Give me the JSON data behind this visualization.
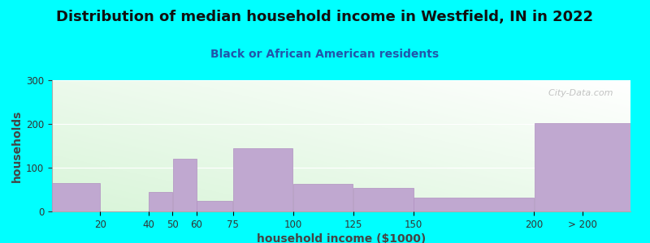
{
  "title": "Distribution of median household income in Westfield, IN in 2022",
  "subtitle": "Black or African American residents",
  "xlabel": "household income ($1000)",
  "ylabel": "households",
  "background_color": "#00FFFF",
  "bar_color": "#C0A8D0",
  "bar_edge_color": "#B090C0",
  "ylim": [
    0,
    300
  ],
  "yticks": [
    0,
    100,
    200,
    300
  ],
  "title_fontsize": 13,
  "subtitle_fontsize": 10,
  "label_fontsize": 10,
  "watermark_text": "City-Data.com",
  "bar_data": [
    [
      0,
      20,
      65
    ],
    [
      20,
      40,
      0
    ],
    [
      40,
      50,
      45
    ],
    [
      50,
      60,
      120
    ],
    [
      60,
      75,
      25
    ],
    [
      75,
      100,
      145
    ],
    [
      100,
      125,
      63
    ],
    [
      125,
      150,
      53
    ],
    [
      150,
      200,
      32
    ],
    [
      200,
      240,
      202
    ]
  ],
  "xtick_pos": [
    20,
    40,
    50,
    60,
    75,
    100,
    125,
    150,
    200,
    220
  ],
  "xtick_lab": [
    "20",
    "40",
    "50",
    "60",
    "75",
    "100",
    "125",
    "150",
    "200",
    "> 200"
  ],
  "xlim": [
    0,
    240
  ]
}
